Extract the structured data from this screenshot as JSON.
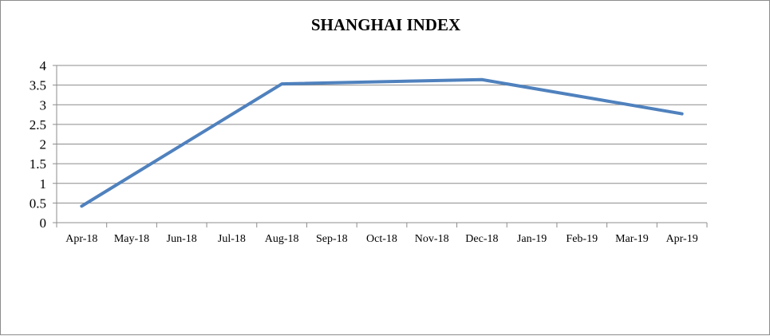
{
  "chart_data": {
    "type": "line",
    "title": "SHANGHAI INDEX",
    "xlabel": "",
    "ylabel": "",
    "categories": [
      "Apr-18",
      "May-18",
      "Jun-18",
      "Jul-18",
      "Aug-18",
      "Sep-18",
      "Oct-18",
      "Nov-18",
      "Dec-18",
      "Jan-19",
      "Feb-19",
      "Mar-19",
      "Apr-19"
    ],
    "y_ticks": [
      "0",
      "0.5",
      "1",
      "1.5",
      "2",
      "2.5",
      "3",
      "3.5",
      "4"
    ],
    "ylim": [
      0,
      4
    ],
    "grid": true,
    "legend": "none",
    "series": [
      {
        "color": "#4f81bd",
        "values": [
          0.42,
          null,
          null,
          null,
          3.53,
          null,
          null,
          null,
          3.64,
          null,
          null,
          null,
          2.77
        ]
      }
    ]
  }
}
